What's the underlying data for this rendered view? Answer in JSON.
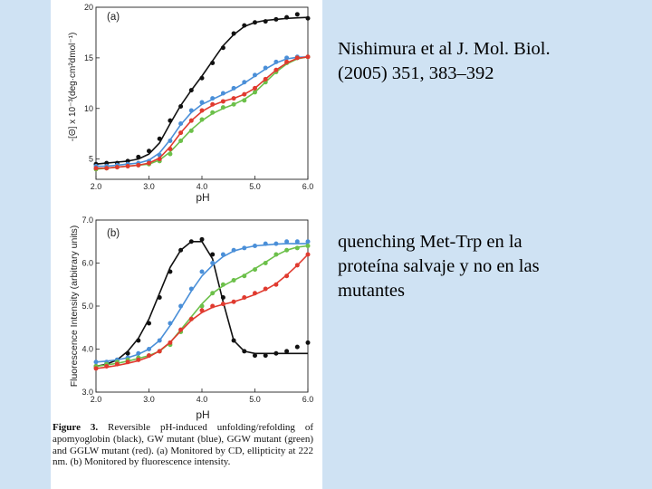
{
  "citation": {
    "line1": "Nishimura et al J. Mol. Biol.",
    "line2": "(2005) 351, 383–392"
  },
  "note": {
    "line1": "quenching Met-Trp en la",
    "line2": "proteína salvaje y no en las",
    "line3": "mutantes"
  },
  "caption": {
    "label": "Figure 3.",
    "text": " Reversible pH-induced unfolding/refolding of apomyoglobin (black), GW mutant (blue), GGW mutant (green) and GGLW mutant (red). (a) Monitored by CD, ellipticity at 222 nm. (b) Monitored by fluorescence intensity."
  },
  "colors": {
    "black": "#111111",
    "blue": "#4a8fd8",
    "green": "#6cc04a",
    "red": "#e03a2f"
  },
  "chart_data": [
    {
      "type": "scatter",
      "panel_label": "(a)",
      "title": "",
      "xlabel": "pH",
      "ylabel": "-[Θ] x 10⁻³(deg·cm²dmol⁻¹)",
      "xlim": [
        2.0,
        6.0
      ],
      "ylim": [
        3,
        20
      ],
      "xticks": [
        "2.0",
        "3.0",
        "4.0",
        "5.0",
        "6.0"
      ],
      "yticks": [
        5,
        10,
        15,
        20
      ],
      "series": [
        {
          "name": "apomyoglobin",
          "color_key": "black",
          "x": [
            2.0,
            2.2,
            2.4,
            2.6,
            2.8,
            3.0,
            3.2,
            3.4,
            3.6,
            3.8,
            4.0,
            4.2,
            4.4,
            4.6,
            4.8,
            5.0,
            5.2,
            5.4,
            5.6,
            5.8,
            6.0
          ],
          "y": [
            4.5,
            4.6,
            4.6,
            4.8,
            5.2,
            5.8,
            7.0,
            8.8,
            10.2,
            11.8,
            13.0,
            14.5,
            16.0,
            17.4,
            18.2,
            18.5,
            18.6,
            18.8,
            19.0,
            19.3,
            18.9
          ],
          "fit": [
            4.5,
            4.6,
            4.7,
            4.8,
            5.0,
            5.5,
            6.6,
            8.5,
            10.3,
            11.8,
            13.2,
            14.7,
            16.2,
            17.3,
            18.1,
            18.5,
            18.7,
            18.8,
            18.9,
            18.95,
            19.0
          ]
        },
        {
          "name": "GW mutant",
          "color_key": "blue",
          "x": [
            2.0,
            2.2,
            2.4,
            2.6,
            2.8,
            3.0,
            3.2,
            3.4,
            3.6,
            3.8,
            4.0,
            4.2,
            4.4,
            4.6,
            4.8,
            5.0,
            5.2,
            5.4,
            5.6,
            5.8,
            6.0
          ],
          "y": [
            4.3,
            4.3,
            4.4,
            4.5,
            4.6,
            4.8,
            5.4,
            6.8,
            8.5,
            9.8,
            10.6,
            11.0,
            11.5,
            12.0,
            12.6,
            13.3,
            14.0,
            14.6,
            15.0,
            15.1,
            15.1
          ],
          "fit": [
            4.3,
            4.3,
            4.4,
            4.5,
            4.6,
            4.9,
            5.6,
            6.9,
            8.4,
            9.6,
            10.4,
            10.9,
            11.4,
            11.9,
            12.5,
            13.2,
            13.9,
            14.5,
            14.9,
            15.05,
            15.1
          ]
        },
        {
          "name": "GGW mutant",
          "color_key": "green",
          "x": [
            2.0,
            2.2,
            2.4,
            2.6,
            2.8,
            3.0,
            3.2,
            3.4,
            3.6,
            3.8,
            4.0,
            4.2,
            4.4,
            4.6,
            4.8,
            5.0,
            5.2,
            5.4,
            5.6,
            5.8,
            6.0
          ],
          "y": [
            4.0,
            4.1,
            4.2,
            4.3,
            4.4,
            4.5,
            4.8,
            5.5,
            6.8,
            7.8,
            8.9,
            9.6,
            10.1,
            10.4,
            10.8,
            11.6,
            12.6,
            13.6,
            14.5,
            15.0,
            15.1
          ],
          "fit": [
            4.0,
            4.1,
            4.2,
            4.3,
            4.4,
            4.5,
            4.9,
            5.7,
            6.8,
            7.9,
            8.8,
            9.5,
            10.0,
            10.4,
            10.9,
            11.6,
            12.6,
            13.6,
            14.4,
            14.9,
            15.1
          ]
        },
        {
          "name": "GGLW mutant",
          "color_key": "red",
          "x": [
            2.0,
            2.2,
            2.4,
            2.6,
            2.8,
            3.0,
            3.2,
            3.4,
            3.6,
            3.8,
            4.0,
            4.2,
            4.4,
            4.6,
            4.8,
            5.0,
            5.2,
            5.4,
            5.6,
            5.8,
            6.0
          ],
          "y": [
            4.1,
            4.1,
            4.2,
            4.3,
            4.4,
            4.6,
            5.0,
            6.0,
            7.6,
            8.8,
            9.8,
            10.4,
            10.7,
            11.0,
            11.4,
            12.0,
            12.9,
            13.8,
            14.6,
            15.0,
            15.1
          ],
          "fit": [
            4.1,
            4.1,
            4.2,
            4.3,
            4.4,
            4.6,
            5.1,
            6.2,
            7.6,
            8.8,
            9.7,
            10.3,
            10.7,
            11.0,
            11.4,
            12.0,
            12.9,
            13.8,
            14.5,
            14.95,
            15.1
          ]
        }
      ]
    },
    {
      "type": "scatter",
      "panel_label": "(b)",
      "title": "",
      "xlabel": "pH",
      "ylabel": "Fluorescence Intensity (arbitrary units)",
      "xlim": [
        2.0,
        6.0
      ],
      "ylim": [
        3.0,
        7.0
      ],
      "xticks": [
        "2.0",
        "3.0",
        "4.0",
        "5.0",
        "6.0"
      ],
      "yticks": [
        "3.0",
        "4.0",
        "5.0",
        "6.0",
        "7.0"
      ],
      "series": [
        {
          "name": "apomyoglobin",
          "color_key": "black",
          "x": [
            2.0,
            2.2,
            2.4,
            2.6,
            2.8,
            3.0,
            3.2,
            3.4,
            3.6,
            3.8,
            4.0,
            4.2,
            4.4,
            4.6,
            4.8,
            5.0,
            5.2,
            5.4,
            5.6,
            5.8,
            6.0
          ],
          "y": [
            3.6,
            3.65,
            3.75,
            3.9,
            4.2,
            4.6,
            5.2,
            5.8,
            6.3,
            6.5,
            6.55,
            6.2,
            5.2,
            4.2,
            3.95,
            3.85,
            3.85,
            3.9,
            3.95,
            4.05,
            4.15
          ],
          "fit": [
            3.6,
            3.65,
            3.75,
            3.95,
            4.25,
            4.7,
            5.3,
            5.9,
            6.3,
            6.5,
            6.5,
            6.1,
            5.1,
            4.2,
            3.95,
            3.9,
            3.9,
            3.9,
            3.9,
            3.9,
            3.9
          ]
        },
        {
          "name": "GW mutant",
          "color_key": "blue",
          "x": [
            2.0,
            2.2,
            2.4,
            2.6,
            2.8,
            3.0,
            3.2,
            3.4,
            3.6,
            3.8,
            4.0,
            4.2,
            4.4,
            4.6,
            4.8,
            5.0,
            5.2,
            5.4,
            5.6,
            5.8,
            6.0
          ],
          "y": [
            3.7,
            3.7,
            3.75,
            3.8,
            3.9,
            4.0,
            4.2,
            4.6,
            5.0,
            5.4,
            5.8,
            6.0,
            6.2,
            6.3,
            6.35,
            6.4,
            6.45,
            6.45,
            6.5,
            6.5,
            6.5
          ],
          "fit": [
            3.7,
            3.72,
            3.75,
            3.8,
            3.88,
            4.0,
            4.2,
            4.55,
            4.95,
            5.35,
            5.7,
            5.95,
            6.15,
            6.28,
            6.35,
            6.4,
            6.42,
            6.44,
            6.45,
            6.45,
            6.45
          ]
        },
        {
          "name": "GGW mutant",
          "color_key": "green",
          "x": [
            2.0,
            2.2,
            2.4,
            2.6,
            2.8,
            3.0,
            3.2,
            3.4,
            3.6,
            3.8,
            4.0,
            4.2,
            4.4,
            4.6,
            4.8,
            5.0,
            5.2,
            5.4,
            5.6,
            5.8,
            6.0
          ],
          "y": [
            3.6,
            3.65,
            3.7,
            3.75,
            3.8,
            3.85,
            3.95,
            4.1,
            4.4,
            4.7,
            5.0,
            5.3,
            5.5,
            5.6,
            5.7,
            5.85,
            6.0,
            6.2,
            6.3,
            6.35,
            6.4
          ],
          "fit": [
            3.6,
            3.63,
            3.67,
            3.72,
            3.78,
            3.85,
            3.95,
            4.15,
            4.45,
            4.75,
            5.05,
            5.3,
            5.47,
            5.6,
            5.72,
            5.87,
            6.02,
            6.18,
            6.3,
            6.37,
            6.4
          ]
        },
        {
          "name": "GGLW mutant",
          "color_key": "red",
          "x": [
            2.0,
            2.2,
            2.4,
            2.6,
            2.8,
            3.0,
            3.2,
            3.4,
            3.6,
            3.8,
            4.0,
            4.2,
            4.4,
            4.6,
            4.8,
            5.0,
            5.2,
            5.4,
            5.6,
            5.8,
            6.0
          ],
          "y": [
            3.55,
            3.6,
            3.65,
            3.7,
            3.75,
            3.85,
            3.95,
            4.15,
            4.45,
            4.7,
            4.9,
            5.0,
            5.05,
            5.1,
            5.2,
            5.3,
            5.4,
            5.5,
            5.7,
            5.95,
            6.2
          ],
          "fit": [
            3.55,
            3.58,
            3.62,
            3.67,
            3.73,
            3.82,
            3.96,
            4.16,
            4.42,
            4.67,
            4.85,
            4.97,
            5.04,
            5.1,
            5.18,
            5.27,
            5.38,
            5.52,
            5.72,
            5.95,
            6.2
          ]
        }
      ]
    }
  ]
}
